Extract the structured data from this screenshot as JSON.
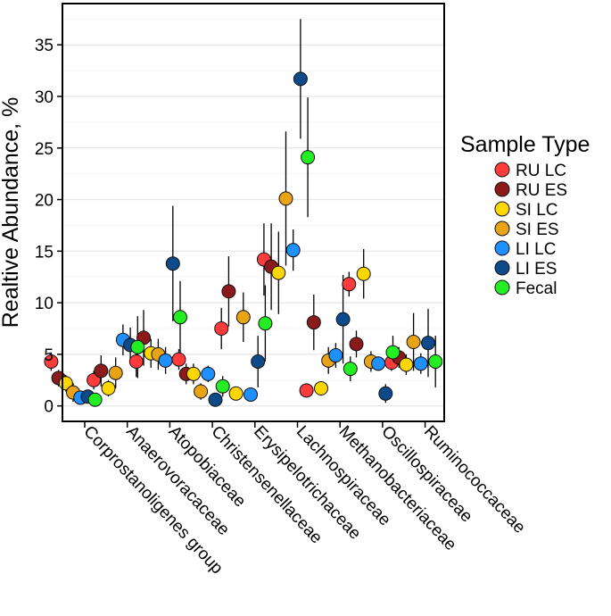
{
  "chart_data": {
    "type": "scatter",
    "title": "",
    "xlabel": "",
    "ylabel": "Realtive Abundance, %",
    "ylim": [
      -1.5,
      39
    ],
    "yticks": [
      0,
      5,
      10,
      15,
      20,
      25,
      30,
      35
    ],
    "grid": true,
    "legend_position": "right",
    "legend_title": "Sample Type",
    "categories": [
      "Corprostanoligenes group",
      "Anaerovoracaceae",
      "Atopobiaceae",
      "Christensenellaceae",
      "Erysipelotrichaceae",
      "Lachnospiraceae",
      "Methanobacteriaceae",
      "Oscillospiraceae",
      "Ruminococcaceae"
    ],
    "series": [
      {
        "name": "RU LC",
        "color": "#ff3b3b",
        "values": [
          4.3,
          2.5,
          4.3,
          4.5,
          7.5,
          14.2,
          1.5,
          11.8,
          4.2
        ],
        "errors": [
          0.9,
          0.9,
          1.5,
          1.0,
          2.0,
          3.5,
          0.4,
          1.2,
          0.8
        ]
      },
      {
        "name": "RU ES",
        "color": "#8b1a1a",
        "values": [
          2.7,
          3.4,
          6.6,
          3.1,
          11.1,
          13.5,
          8.1,
          6.0,
          4.7
        ],
        "errors": [
          0.8,
          1.5,
          2.7,
          1.0,
          3.4,
          4.2,
          2.7,
          1.3,
          1.0
        ]
      },
      {
        "name": "SI LC",
        "color": "#ffd700",
        "values": [
          2.2,
          1.7,
          5.1,
          3.1,
          1.2,
          12.9,
          1.7,
          12.8,
          4.0
        ],
        "errors": [
          0.8,
          0.8,
          1.4,
          1.0,
          0.5,
          4.0,
          0.5,
          2.4,
          1.0
        ]
      },
      {
        "name": "SI ES",
        "color": "#e8a317",
        "values": [
          1.3,
          3.2,
          5.0,
          1.4,
          8.6,
          20.1,
          4.4,
          4.3,
          6.2
        ],
        "errors": [
          0.9,
          1.5,
          1.5,
          0.8,
          2.4,
          6.5,
          1.3,
          1.0,
          2.8
        ]
      },
      {
        "name": "LI LC",
        "color": "#1e90ff",
        "values": [
          0.8,
          6.4,
          4.4,
          3.1,
          1.1,
          15.1,
          4.9,
          4.1,
          4.1
        ],
        "errors": [
          0.5,
          1.5,
          1.3,
          0.8,
          0.5,
          2.0,
          1.2,
          0.7,
          1.0
        ]
      },
      {
        "name": "LI ES",
        "color": "#0d4a8a",
        "values": [
          0.9,
          5.9,
          13.8,
          0.6,
          4.3,
          31.7,
          8.4,
          1.2,
          6.1
        ],
        "errors": [
          0.5,
          1.7,
          5.6,
          0.5,
          2.5,
          5.8,
          4.3,
          0.9,
          3.3
        ]
      },
      {
        "name": "Fecal",
        "color": "#22ee22",
        "values": [
          0.6,
          5.7,
          8.6,
          1.9,
          8.0,
          24.1,
          3.6,
          5.2,
          4.3
        ],
        "errors": [
          0.3,
          3.0,
          3.5,
          1.0,
          3.7,
          5.8,
          1.2,
          1.6,
          2.5
        ]
      }
    ]
  }
}
